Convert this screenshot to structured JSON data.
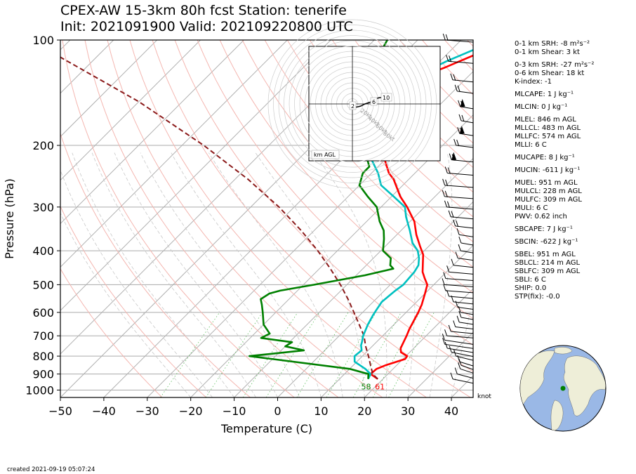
{
  "title_line1": "CPEX-AW 15-3km  80h fcst  Station: tenerife",
  "title_line2": "Init: 2021091900  Valid: 2021092208​00 UTC",
  "chart_data": {
    "type": "line",
    "subtype": "skew-T log-P",
    "xlabel": "Temperature (C)",
    "ylabel": "Pressure (hPa)",
    "xlim": [
      -50,
      45
    ],
    "ylim": [
      1050,
      100
    ],
    "y_scale": "log",
    "x_ticks": [
      -50,
      -40,
      -30,
      -20,
      -10,
      0,
      10,
      20,
      30,
      40
    ],
    "y_ticks": [
      100,
      200,
      300,
      400,
      500,
      600,
      700,
      800,
      900,
      1000
    ],
    "wind_unit": "knot",
    "surface_labels": {
      "dewpoint": "58",
      "temperature": "61"
    },
    "series": [
      {
        "name": "temperature",
        "color": "#ff0000",
        "points": [
          [
            18.8,
            930
          ],
          [
            16,
            900
          ],
          [
            16.2,
            870
          ],
          [
            17.4,
            850
          ],
          [
            20.5,
            815
          ],
          [
            20.3,
            800
          ],
          [
            18,
            780
          ],
          [
            17,
            760
          ],
          [
            15.5,
            700
          ],
          [
            14.6,
            670
          ],
          [
            13.6,
            630
          ],
          [
            12.8,
            600
          ],
          [
            11.8,
            570
          ],
          [
            10,
            530
          ],
          [
            8.5,
            500
          ],
          [
            6.5,
            480
          ],
          [
            4.5,
            460
          ],
          [
            3,
            440
          ],
          [
            0.6,
            410
          ],
          [
            -1.8,
            390
          ],
          [
            -5.5,
            360
          ],
          [
            -9,
            330
          ],
          [
            -14,
            300
          ],
          [
            -18,
            280
          ],
          [
            -23.5,
            250
          ],
          [
            -26,
            240
          ],
          [
            -30,
            220
          ],
          [
            -32,
            210
          ],
          [
            -33.5,
            200
          ],
          [
            -35,
            190
          ],
          [
            -36.8,
            180
          ],
          [
            -39,
            170
          ],
          [
            -40.6,
            160
          ],
          [
            -41.5,
            150
          ],
          [
            -41.7,
            140
          ],
          [
            -42,
            130
          ],
          [
            -37.5,
            120
          ],
          [
            -35.5,
            115
          ],
          [
            -32,
            107
          ],
          [
            -30,
            100
          ]
        ]
      },
      {
        "name": "parcel",
        "color": "#8b1a1a",
        "dashed": true,
        "points": [
          [
            18.8,
            930
          ],
          [
            16.5,
            900
          ],
          [
            14,
            850
          ],
          [
            11.4,
            800
          ],
          [
            8.5,
            750
          ],
          [
            5.7,
            700
          ],
          [
            2,
            650
          ],
          [
            -2,
            600
          ],
          [
            -6.4,
            550
          ],
          [
            -11.5,
            500
          ],
          [
            -17.5,
            450
          ],
          [
            -24.5,
            400
          ],
          [
            -33,
            350
          ],
          [
            -43.5,
            300
          ],
          [
            -57,
            250
          ],
          [
            -75,
            200
          ],
          [
            -100,
            150
          ],
          [
            -130,
            110
          ]
        ]
      },
      {
        "name": "virtual temperature",
        "color": "#00c0c0",
        "points": [
          [
            16.6,
            930
          ],
          [
            16,
            900
          ],
          [
            13.6,
            870
          ],
          [
            9.5,
            830
          ],
          [
            8.2,
            800
          ],
          [
            8.5,
            770
          ],
          [
            7.2,
            745
          ],
          [
            6.7,
            730
          ],
          [
            5.5,
            700
          ],
          [
            4,
            650
          ],
          [
            3,
            610
          ],
          [
            2.6,
            590
          ],
          [
            2,
            560
          ],
          [
            2.5,
            520
          ],
          [
            3,
            500
          ],
          [
            2.6,
            460
          ],
          [
            2,
            440
          ],
          [
            0.5,
            420
          ],
          [
            -1.5,
            400
          ],
          [
            -4.5,
            380
          ],
          [
            -8,
            350
          ],
          [
            -12,
            320
          ],
          [
            -14.5,
            300
          ],
          [
            -19.5,
            280
          ],
          [
            -25,
            260
          ],
          [
            -28.5,
            240
          ],
          [
            -33,
            220
          ],
          [
            -36.5,
            200
          ],
          [
            -39,
            190
          ],
          [
            -41,
            180
          ],
          [
            -43,
            170
          ],
          [
            -44.5,
            160
          ],
          [
            -45,
            150
          ],
          [
            -45,
            140
          ],
          [
            -45.5,
            130
          ],
          [
            -40,
            120
          ],
          [
            -38.5,
            115
          ],
          [
            -35,
            107
          ],
          [
            -32,
            100
          ]
        ]
      },
      {
        "name": "dewpoint",
        "color": "#008000",
        "points": [
          [
            16.6,
            930
          ],
          [
            15.5,
            900
          ],
          [
            10,
            870
          ],
          [
            -16,
            800
          ],
          [
            -4.8,
            770
          ],
          [
            -10,
            750
          ],
          [
            -9.4,
            730
          ],
          [
            -17.5,
            710
          ],
          [
            -16.5,
            690
          ],
          [
            -20,
            650
          ],
          [
            -23,
            600
          ],
          [
            -25,
            570
          ],
          [
            -26.5,
            550
          ],
          [
            -25.8,
            530
          ],
          [
            -24,
            520
          ],
          [
            -17.5,
            500
          ],
          [
            -8,
            470
          ],
          [
            -3,
            450
          ],
          [
            -4.5,
            440
          ],
          [
            -6,
            420
          ],
          [
            -9.5,
            400
          ],
          [
            -12,
            370
          ],
          [
            -14,
            350
          ],
          [
            -17,
            330
          ],
          [
            -21,
            300
          ],
          [
            -25.5,
            280
          ],
          [
            -30,
            260
          ],
          [
            -32,
            240
          ],
          [
            -32,
            230
          ],
          [
            -34,
            220
          ],
          [
            -37.5,
            200
          ],
          [
            -42,
            180
          ],
          [
            -47,
            160
          ],
          [
            -50,
            150
          ],
          [
            -52,
            140
          ],
          [
            -54.5,
            130
          ],
          [
            -55,
            120
          ],
          [
            -55.5,
            110
          ],
          [
            -57,
            100
          ]
        ]
      }
    ]
  },
  "hodograph": {
    "rings_kt": [
      "20kt",
      "40kt",
      "60kt",
      "80kt"
    ],
    "height_labels": [
      "2",
      "6",
      "10"
    ],
    "legend": "km AGL",
    "points_kt": [
      [
        0,
        -2
      ],
      [
        4,
        -3
      ],
      [
        8,
        -2
      ],
      [
        12,
        0
      ],
      [
        18,
        2
      ],
      [
        20,
        4
      ],
      [
        22,
        5
      ],
      [
        26,
        6
      ],
      [
        30,
        6
      ],
      [
        33,
        7
      ],
      [
        34,
        6
      ]
    ]
  },
  "indices": [
    {
      "text": "0-1 km SRH: -8 m²s⁻²"
    },
    {
      "text": "0-1 km Shear: 3 kt"
    },
    {
      "text": "0-3 km SRH: -27 m²s⁻²",
      "gap": true
    },
    {
      "text": "0-6 km Shear: 18 kt"
    },
    {
      "text": "K-index: -1"
    },
    {
      "text": "MLCAPE: 1 J kg⁻¹",
      "gap": true
    },
    {
      "text": "MLCIN: 0 J kg⁻¹",
      "gap": true
    },
    {
      "text": "MLEL: 846 m AGL",
      "gap": true
    },
    {
      "text": "MLLCL: 483 m AGL"
    },
    {
      "text": "MLLFC: 574 m AGL"
    },
    {
      "text": "MLLI: 6 C"
    },
    {
      "text": "MUCAPE: 8 J kg⁻¹",
      "gap": true
    },
    {
      "text": "MUCIN: -611 J kg⁻¹",
      "gap": true
    },
    {
      "text": "MUEL: 951 m AGL",
      "gap": true
    },
    {
      "text": "MULCL: 228 m AGL"
    },
    {
      "text": "MULFC: 309 m AGL"
    },
    {
      "text": "MULI: 6 C"
    },
    {
      "text": "PWV: 0.62 inch"
    },
    {
      "text": "SBCAPE: 7 J kg⁻¹",
      "gap": true
    },
    {
      "text": "SBCIN: -622 J kg⁻¹",
      "gap": true
    },
    {
      "text": "SBEL: 951 m AGL",
      "gap": true
    },
    {
      "text": "SBLCL: 214 m AGL"
    },
    {
      "text": "SBLFC: 309 m AGL"
    },
    {
      "text": "SBLI: 6 C"
    },
    {
      "text": "SHIP: 0.0"
    },
    {
      "text": "STP(fix): -0.0"
    }
  ],
  "footer": "created 2021-09-19 05:07:24",
  "colors": {
    "ocean": "#9ab8e6",
    "land": "#eeeed8",
    "station": "#008000"
  }
}
